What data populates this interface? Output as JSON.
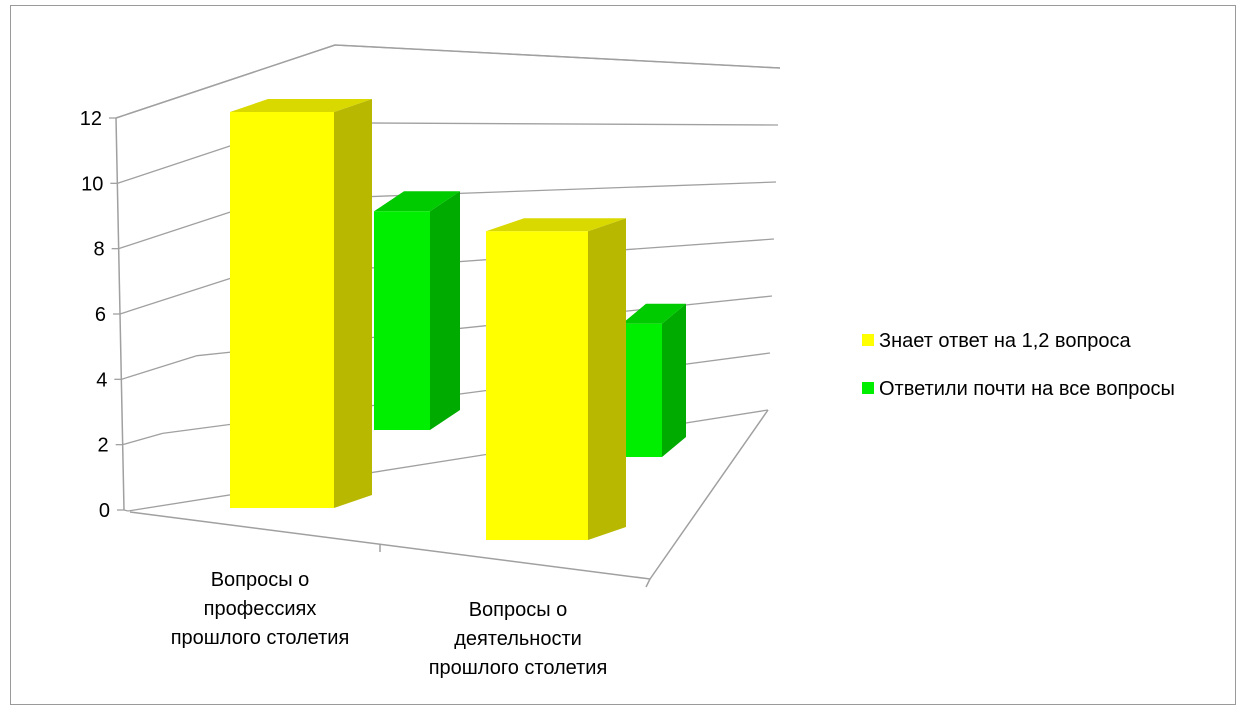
{
  "chart_data": {
    "type": "bar",
    "title": "",
    "xlabel": "",
    "ylabel": "",
    "ylim": [
      0,
      12
    ],
    "y_ticks": [
      "0",
      "2",
      "4",
      "6",
      "8",
      "10",
      "12"
    ],
    "categories": [
      [
        "Вопросы о",
        "профессиях",
        "прошлого столетия"
      ],
      [
        "Вопросы о",
        "деятельности",
        "прошлого столетия"
      ]
    ],
    "series": [
      {
        "name": "Знает ответ на 1,2 вопроса",
        "values": [
          12,
          9
        ],
        "color": "#ffff00"
      },
      {
        "name": "Ответили почти на все вопросы",
        "values": [
          9,
          4
        ],
        "color": "#00ee00"
      }
    ],
    "grid": true,
    "legend_position": "right",
    "style": "3d-clustered-column"
  }
}
